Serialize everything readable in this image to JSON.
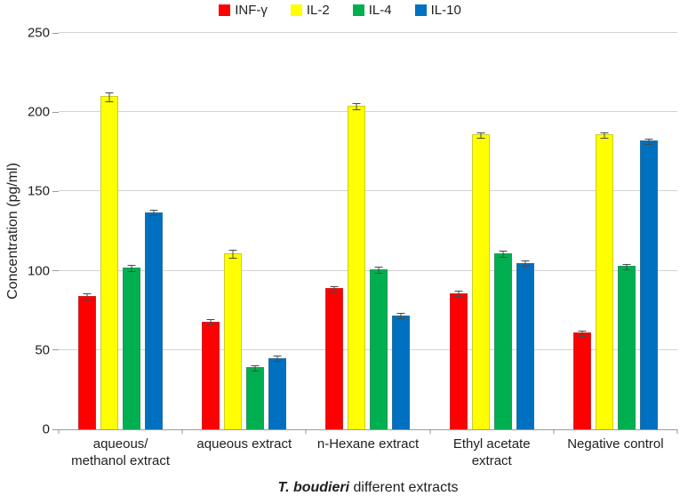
{
  "yaxis": {
    "title": "Concentration (pg/ml)",
    "ticks": [
      0,
      50,
      100,
      150,
      200,
      250
    ]
  },
  "xaxis": {
    "title_italic": "T. boudieri",
    "title_rest": " different extracts"
  },
  "chart_data": {
    "type": "bar",
    "title": "",
    "categories": [
      "aqueous/\nmethanol extract",
      "aqueous extract",
      "n-Hexane extract",
      "Ethyl acetate\nextract",
      "Negative control"
    ],
    "series": [
      {
        "name": "INF-γ",
        "color": "#FF0000",
        "values": [
          84,
          68,
          89,
          86,
          61
        ],
        "errors": [
          1.5,
          1.5,
          1.5,
          1.5,
          1.5
        ]
      },
      {
        "name": "IL-2",
        "color": "#FFFF00",
        "values": [
          210,
          111,
          204,
          186,
          186
        ],
        "errors": [
          2.5,
          2,
          1.5,
          1.5,
          1.5
        ]
      },
      {
        "name": "IL-4",
        "color": "#00B050",
        "values": [
          102,
          39,
          101,
          111,
          103
        ],
        "errors": [
          1.5,
          1.5,
          1.5,
          1.5,
          1.5
        ]
      },
      {
        "name": "IL-10",
        "color": "#0070C0",
        "values": [
          137,
          45,
          72,
          105,
          182
        ],
        "errors": [
          1.5,
          1.5,
          1.5,
          1.5,
          1.5
        ]
      }
    ],
    "ylabel": "Concentration (pg/ml)",
    "xlabel": "T. boudieri different extracts",
    "ylim": [
      0,
      250
    ],
    "grid": true,
    "legend_position": "top",
    "error_bars": true
  }
}
